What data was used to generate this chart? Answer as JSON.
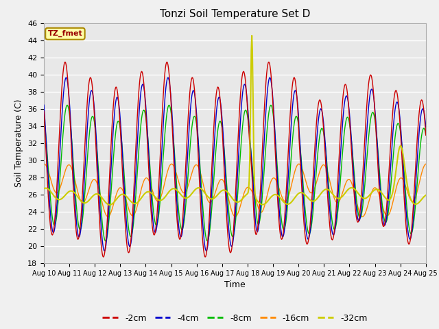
{
  "title": "Tonzi Soil Temperature Set D",
  "xlabel": "Time",
  "ylabel": "Soil Temperature (C)",
  "ylim": [
    18,
    46
  ],
  "xlim": [
    0,
    360
  ],
  "annotation": "TZ_fmet",
  "fig_facecolor": "#f0f0f0",
  "ax_facecolor": "#e8e8e8",
  "lines": {
    "-2cm": {
      "color": "#cc0000",
      "lw": 1.0
    },
    "-4cm": {
      "color": "#0000cc",
      "lw": 1.0
    },
    "-8cm": {
      "color": "#00bb00",
      "lw": 1.0
    },
    "-16cm": {
      "color": "#ff8800",
      "lw": 1.0
    },
    "-32cm": {
      "color": "#cccc00",
      "lw": 1.5
    }
  },
  "xtick_labels": [
    "Aug 10",
    "Aug 11",
    "Aug 12",
    "Aug 13",
    "Aug 14",
    "Aug 15",
    "Aug 16",
    "Aug 17",
    "Aug 18",
    "Aug 19",
    "Aug 20",
    "Aug 21",
    "Aug 22",
    "Aug 23",
    "Aug 24",
    "Aug 25"
  ],
  "xtick_positions": [
    0,
    24,
    48,
    72,
    96,
    120,
    144,
    168,
    192,
    216,
    240,
    264,
    288,
    312,
    336,
    360
  ],
  "ytick_labels": [
    "18",
    "20",
    "22",
    "24",
    "26",
    "28",
    "30",
    "32",
    "34",
    "36",
    "38",
    "40",
    "42",
    "44",
    "46"
  ],
  "ytick_positions": [
    18,
    20,
    22,
    24,
    26,
    28,
    30,
    32,
    34,
    36,
    38,
    40,
    42,
    44,
    46
  ]
}
